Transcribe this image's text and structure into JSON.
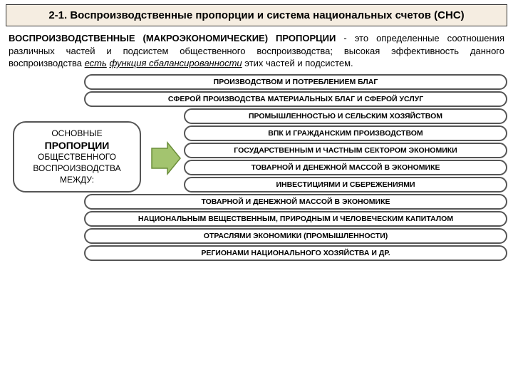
{
  "title": "2-1. Воспроизводственные пропорции и система национальных счетов (СНС)",
  "definition": {
    "bold_lead": "ВОСПРОИЗВОДСТВЕННЫЕ (МАКРОЭКОНОМИЧЕСКИЕ) ПРОПОРЦИИ",
    "dash": " - ",
    "eto": "это",
    "body1": " определенные соотношения различных частей и подсистем общественного воспроизводства; высокая эффективность данного воспроизводства ",
    "ul1": "есть",
    "sp": " ",
    "ul2": "функция сбалансированности",
    "body2": " этих частей и подсистем."
  },
  "source": {
    "l1": "ОСНОВНЫЕ",
    "l2": "ПРОПОРЦИИ",
    "l3": "ОБЩЕСТВЕННОГО",
    "l4": "ВОСПРОИЗВОДСТВА",
    "l5": "МЕЖДУ:"
  },
  "pills": [
    "ПРОИЗВОДСТВОМ И ПОТРЕБЛЕНИЕМ БЛАГ",
    "СФЕРОЙ ПРОИЗВОДСТВА МАТЕРИАЛЬНЫХ БЛАГ И СФЕРОЙ УСЛУГ",
    "ПРОМЫШЛЕННОСТЬЮ И СЕЛЬСКИМ ХОЗЯЙСТВОМ",
    "ВПК И ГРАЖДАНСКИМ ПРОИЗВОДСТВОМ",
    "ГОСУДАРСТВЕННЫМ И ЧАСТНЫМ СЕКТОРОМ ЭКОНОМИКИ",
    "ТОВАРНОЙ И ДЕНЕЖНОЙ МАССОЙ В ЭКОНОМИКЕ",
    "ИНВЕСТИЦИЯМИ И СБЕРЕЖЕНИЯМИ",
    "ТОВАРНОЙ И ДЕНЕЖНОЙ МАССОЙ В ЭКОНОМИКЕ",
    "НАЦИОНАЛЬНЫМ ВЕЩЕСТВЕННЫМ, ПРИРОДНЫМ И ЧЕЛОВЕЧЕСКИМ КАПИТАЛОМ",
    "ОТРАСЛЯМИ ЭКОНОМИКИ (ПРОМЫШЛЕННОСТИ)",
    "РЕГИОНАМИ НАЦИОНАЛЬНОГО ХОЗЯЙСТВА И ДР."
  ],
  "layout": {
    "wide_indices": [
      0,
      1,
      7,
      8,
      9,
      10
    ],
    "arrow": {
      "fill": "#a3c46f",
      "stroke": "#6b8e3a",
      "width": 44,
      "height": 48
    }
  },
  "colors": {
    "title_bg": "#f5ede1",
    "border": "#555555",
    "text": "#000000"
  }
}
